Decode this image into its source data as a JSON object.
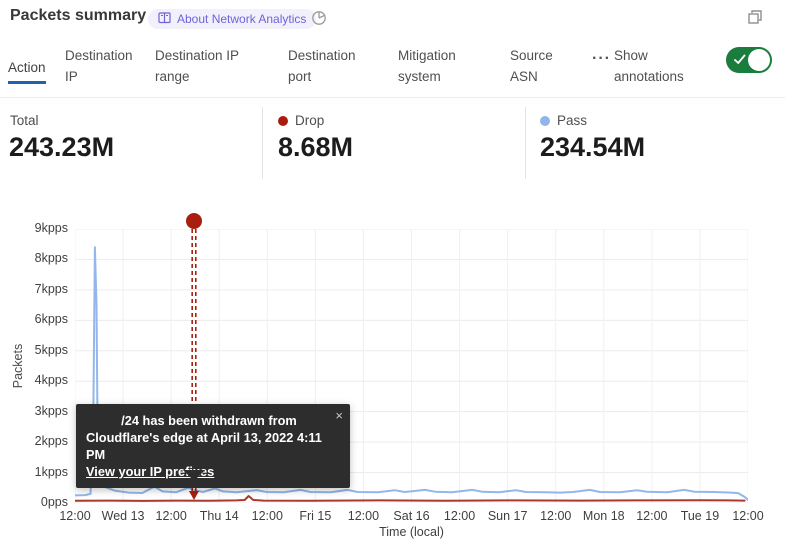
{
  "header": {
    "title": "Packets summary",
    "badge_label": "About Network Analytics"
  },
  "icons": {
    "book_icon": "about-badge book glyph",
    "pie_icon": "time-range pie glyph",
    "restore_icon": "pop-out overlapping squares glyph",
    "check_icon": "toggle-on checkmark"
  },
  "tabs": {
    "items": [
      {
        "label": "Action",
        "active": true
      },
      {
        "label": "Destination IP",
        "active": false
      },
      {
        "label": "Destination IP range",
        "active": false
      },
      {
        "label": "Destination port",
        "active": false
      },
      {
        "label": "Mitigation system",
        "active": false
      },
      {
        "label": "Source ASN",
        "active": false
      }
    ],
    "more_label": "···",
    "annotations_label": "Show annotations",
    "annotations_on": true,
    "active_underline_color": "#1f62ae",
    "toggle_color": "#1b7d3d"
  },
  "stats": {
    "total": {
      "label": "Total",
      "value": "243.23M"
    },
    "drop": {
      "label": "Drop",
      "value": "8.68M",
      "color": "#ab1c0e"
    },
    "pass": {
      "label": "Pass",
      "value": "234.54M",
      "color": "#8fb5e9"
    }
  },
  "tooltip": {
    "line1": "/24 has been withdrawn from",
    "line2": "Cloudflare's edge at April 13, 2022 4:11 PM",
    "link_label": "View your IP prefixes",
    "close_glyph": "×"
  },
  "chart_data": {
    "type": "line",
    "title": "Packets summary",
    "xlabel": "Time (local)",
    "ylabel": "Packets",
    "ylim": [
      0,
      9000
    ],
    "y_unit": "pps",
    "grid": true,
    "legend_position": "top (stat cards)",
    "y_ticks": [
      "9kpps",
      "8kpps",
      "7kpps",
      "6kpps",
      "5kpps",
      "4kpps",
      "3kpps",
      "2kpps",
      "1kpps",
      "0pps"
    ],
    "x_ticks": [
      "12:00",
      "Wed 13",
      "12:00",
      "Thu 14",
      "12:00",
      "Fri 15",
      "12:00",
      "Sat 16",
      "12:00",
      "Sun 17",
      "12:00",
      "Mon 18",
      "12:00",
      "Tue 19",
      "12:00"
    ],
    "annotation": {
      "x_fraction": 0.1768,
      "color": "#a81f10",
      "style": "double dashed vertical line with dot marker at top and arrowhead at bottom"
    },
    "series": [
      {
        "name": "Pass",
        "color": "#92b7ea",
        "points_x_fraction_y_pps": [
          [
            0.0,
            250
          ],
          [
            0.015,
            260
          ],
          [
            0.023,
            300
          ],
          [
            0.027,
            2500
          ],
          [
            0.0295,
            8400
          ],
          [
            0.032,
            6500
          ],
          [
            0.034,
            1200
          ],
          [
            0.038,
            700
          ],
          [
            0.045,
            520
          ],
          [
            0.06,
            400
          ],
          [
            0.08,
            340
          ],
          [
            0.1,
            330
          ],
          [
            0.118,
            540
          ],
          [
            0.13,
            380
          ],
          [
            0.15,
            350
          ],
          [
            0.168,
            500
          ],
          [
            0.178,
            420
          ],
          [
            0.19,
            360
          ],
          [
            0.208,
            480
          ],
          [
            0.22,
            380
          ],
          [
            0.24,
            350
          ],
          [
            0.27,
            420
          ],
          [
            0.285,
            360
          ],
          [
            0.31,
            350
          ],
          [
            0.335,
            430
          ],
          [
            0.35,
            360
          ],
          [
            0.38,
            350
          ],
          [
            0.405,
            430
          ],
          [
            0.42,
            360
          ],
          [
            0.45,
            350
          ],
          [
            0.475,
            420
          ],
          [
            0.49,
            360
          ],
          [
            0.52,
            430
          ],
          [
            0.535,
            370
          ],
          [
            0.56,
            350
          ],
          [
            0.59,
            430
          ],
          [
            0.605,
            370
          ],
          [
            0.63,
            350
          ],
          [
            0.655,
            420
          ],
          [
            0.67,
            360
          ],
          [
            0.7,
            350
          ],
          [
            0.72,
            340
          ],
          [
            0.74,
            360
          ],
          [
            0.765,
            430
          ],
          [
            0.78,
            360
          ],
          [
            0.81,
            350
          ],
          [
            0.835,
            420
          ],
          [
            0.85,
            370
          ],
          [
            0.88,
            350
          ],
          [
            0.905,
            430
          ],
          [
            0.92,
            370
          ],
          [
            0.95,
            360
          ],
          [
            0.97,
            345
          ],
          [
            0.985,
            330
          ],
          [
            0.995,
            200
          ],
          [
            1.0,
            100
          ]
        ]
      },
      {
        "name": "Drop",
        "color": "#a63a2e",
        "points_x_fraction_y_pps": [
          [
            0.0,
            75
          ],
          [
            0.05,
            80
          ],
          [
            0.1,
            70
          ],
          [
            0.15,
            80
          ],
          [
            0.2,
            75
          ],
          [
            0.24,
            85
          ],
          [
            0.252,
            100
          ],
          [
            0.258,
            230
          ],
          [
            0.265,
            100
          ],
          [
            0.28,
            80
          ],
          [
            0.35,
            75
          ],
          [
            0.45,
            85
          ],
          [
            0.55,
            75
          ],
          [
            0.65,
            85
          ],
          [
            0.75,
            80
          ],
          [
            0.85,
            85
          ],
          [
            0.93,
            90
          ],
          [
            0.97,
            85
          ],
          [
            0.995,
            80
          ]
        ]
      }
    ]
  }
}
